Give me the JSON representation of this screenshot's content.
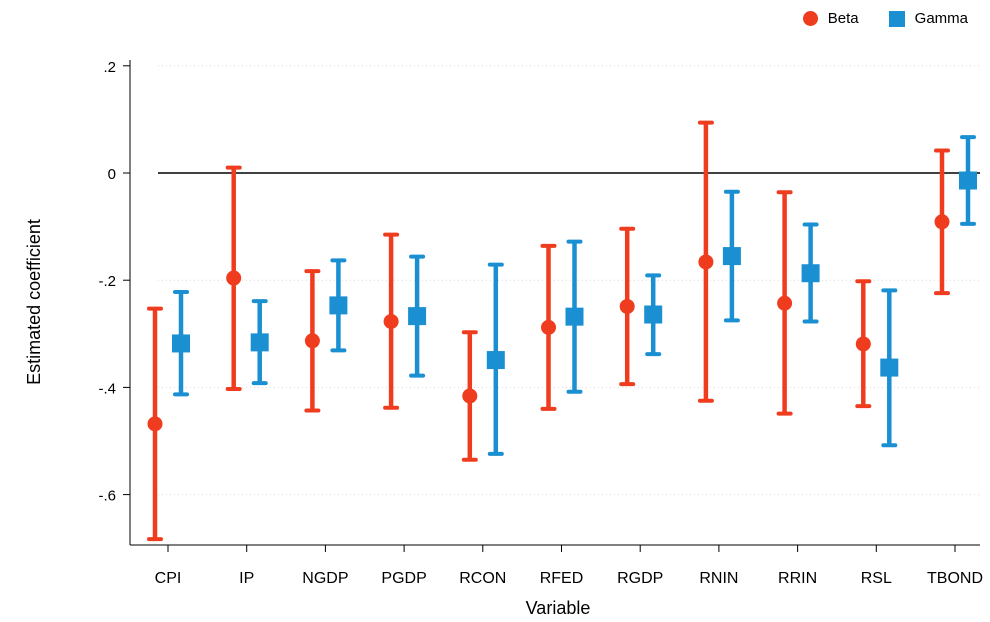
{
  "chart_data": {
    "type": "scatter",
    "subtype": "coefficient plot with confidence intervals",
    "xlabel": "Variable",
    "ylabel": "Estimated coefficient",
    "categories": [
      "CPI",
      "IP",
      "NGDP",
      "PGDP",
      "RCON",
      "RFED",
      "RGDP",
      "RNIN",
      "RRIN",
      "RSL",
      "TBOND"
    ],
    "ylim": [
      -0.72,
      0.2
    ],
    "yticks": [
      0.2,
      0,
      -0.2,
      -0.4,
      -0.6
    ],
    "ytick_labels": [
      ".2",
      "0",
      "-.2",
      "-.4",
      "-.6"
    ],
    "grid": "horizontal dotted",
    "reference_line": 0,
    "legend_position": "top-right",
    "series": [
      {
        "name": "Beta",
        "marker": "circle",
        "color": "#f03c1e",
        "points": [
          {
            "x": "CPI",
            "estimate": -0.468,
            "ci_low": -0.683,
            "ci_high": -0.253
          },
          {
            "x": "IP",
            "estimate": -0.196,
            "ci_low": -0.403,
            "ci_high": 0.01
          },
          {
            "x": "NGDP",
            "estimate": -0.313,
            "ci_low": -0.443,
            "ci_high": -0.183
          },
          {
            "x": "PGDP",
            "estimate": -0.277,
            "ci_low": -0.438,
            "ci_high": -0.115
          },
          {
            "x": "RCON",
            "estimate": -0.416,
            "ci_low": -0.535,
            "ci_high": -0.297
          },
          {
            "x": "RFED",
            "estimate": -0.288,
            "ci_low": -0.44,
            "ci_high": -0.136
          },
          {
            "x": "RGDP",
            "estimate": -0.249,
            "ci_low": -0.394,
            "ci_high": -0.104
          },
          {
            "x": "RNIN",
            "estimate": -0.166,
            "ci_low": -0.425,
            "ci_high": 0.094
          },
          {
            "x": "RRIN",
            "estimate": -0.243,
            "ci_low": -0.449,
            "ci_high": -0.036
          },
          {
            "x": "RSL",
            "estimate": -0.319,
            "ci_low": -0.435,
            "ci_high": -0.202
          },
          {
            "x": "TBOND",
            "estimate": -0.091,
            "ci_low": -0.224,
            "ci_high": 0.042
          }
        ]
      },
      {
        "name": "Gamma",
        "marker": "square",
        "color": "#1a8fd1",
        "points": [
          {
            "x": "CPI",
            "estimate": -0.318,
            "ci_low": -0.413,
            "ci_high": -0.222
          },
          {
            "x": "IP",
            "estimate": -0.316,
            "ci_low": -0.392,
            "ci_high": -0.239
          },
          {
            "x": "NGDP",
            "estimate": -0.247,
            "ci_low": -0.331,
            "ci_high": -0.163
          },
          {
            "x": "PGDP",
            "estimate": -0.267,
            "ci_low": -0.378,
            "ci_high": -0.156
          },
          {
            "x": "RCON",
            "estimate": -0.349,
            "ci_low": -0.524,
            "ci_high": -0.171
          },
          {
            "x": "RFED",
            "estimate": -0.268,
            "ci_low": -0.408,
            "ci_high": -0.128
          },
          {
            "x": "RGDP",
            "estimate": -0.264,
            "ci_low": -0.338,
            "ci_high": -0.191
          },
          {
            "x": "RNIN",
            "estimate": -0.155,
            "ci_low": -0.275,
            "ci_high": -0.035
          },
          {
            "x": "RRIN",
            "estimate": -0.187,
            "ci_low": -0.277,
            "ci_high": -0.096
          },
          {
            "x": "RSL",
            "estimate": -0.363,
            "ci_low": -0.508,
            "ci_high": -0.219
          },
          {
            "x": "TBOND",
            "estimate": -0.014,
            "ci_low": -0.095,
            "ci_high": 0.067
          }
        ]
      }
    ]
  }
}
